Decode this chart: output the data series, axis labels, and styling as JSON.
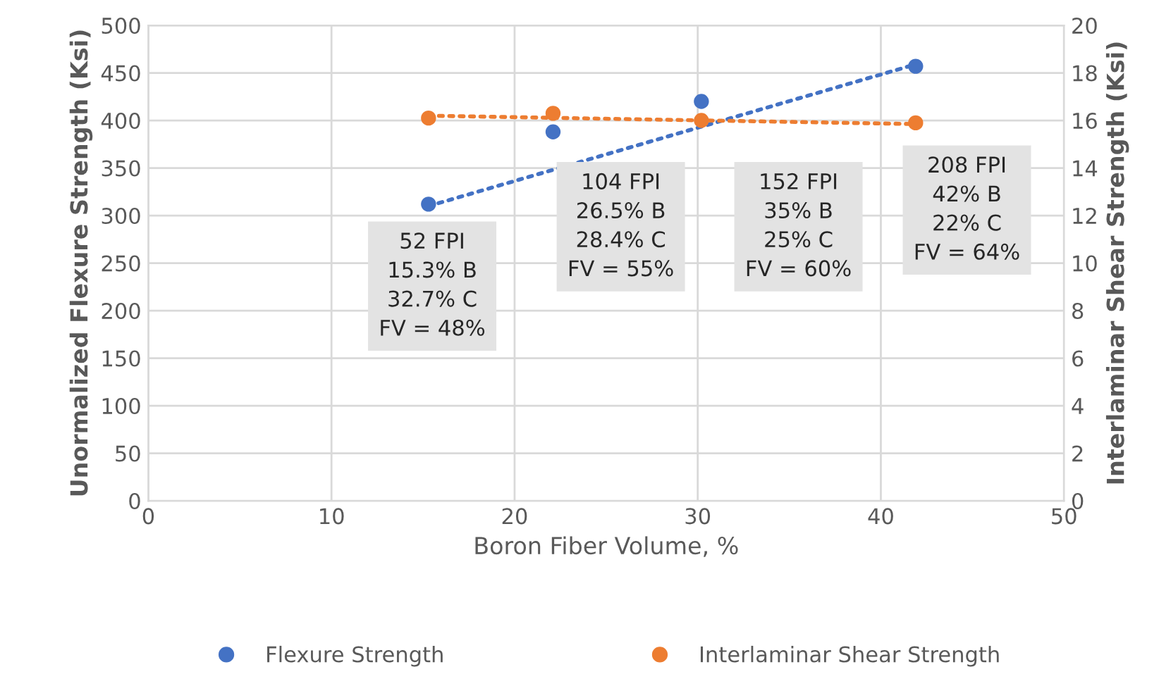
{
  "chart_data": {
    "type": "scatter",
    "xlabel": "Boron Fiber Volume, %",
    "ylabel": "Unormalized Flexure Strength (Ksi)",
    "y2label": "Interlaminar Shear Strength (Ksi)",
    "xlim": [
      0,
      50
    ],
    "xticks": [
      0,
      10,
      20,
      30,
      40,
      50
    ],
    "ylim": [
      0,
      500
    ],
    "yticks": [
      0,
      50,
      100,
      150,
      200,
      250,
      300,
      350,
      400,
      450,
      500
    ],
    "y2lim": [
      0,
      20
    ],
    "y2ticks": [
      0,
      2,
      4,
      6,
      8,
      10,
      12,
      14,
      16,
      18,
      20
    ],
    "grid": true,
    "legend": "bottom",
    "marker": "circle",
    "series": [
      {
        "name": "Flexure Strength",
        "color": "#4472c4",
        "x": [
          15.3,
          22.1,
          30.2,
          41.9
        ],
        "values": [
          312,
          388,
          420,
          457
        ]
      },
      {
        "name": "Interlaminar Shear Strength",
        "color": "#ed7d31",
        "axis": "y2",
        "x": [
          15.3,
          22.1,
          30.2,
          41.9
        ],
        "values": [
          16.1,
          16.3,
          16.0,
          15.9
        ]
      },
      {
        "type": "line",
        "color": "#4472c4",
        "line_style": "dotted",
        "marker": "none",
        "x": [
          15.3,
          41.9
        ],
        "values": [
          310,
          459
        ]
      },
      {
        "type": "line",
        "color": "#ed7d31",
        "line_style": "dotted",
        "marker": "none",
        "axis": "y2",
        "x": [
          15.3,
          41.9
        ],
        "values": [
          16.2,
          15.85
        ]
      }
    ],
    "annotations": [
      "52 FPI\n15.3% B\n32.7% C\nFV = 48%",
      "104 FPI\n26.5% B\n28.4% C\nFV = 55%",
      "152 FPI\n35% B\n25% C\nFV = 60%",
      "208 FPI\n42% B\n22% C\nFV = 64%"
    ]
  }
}
